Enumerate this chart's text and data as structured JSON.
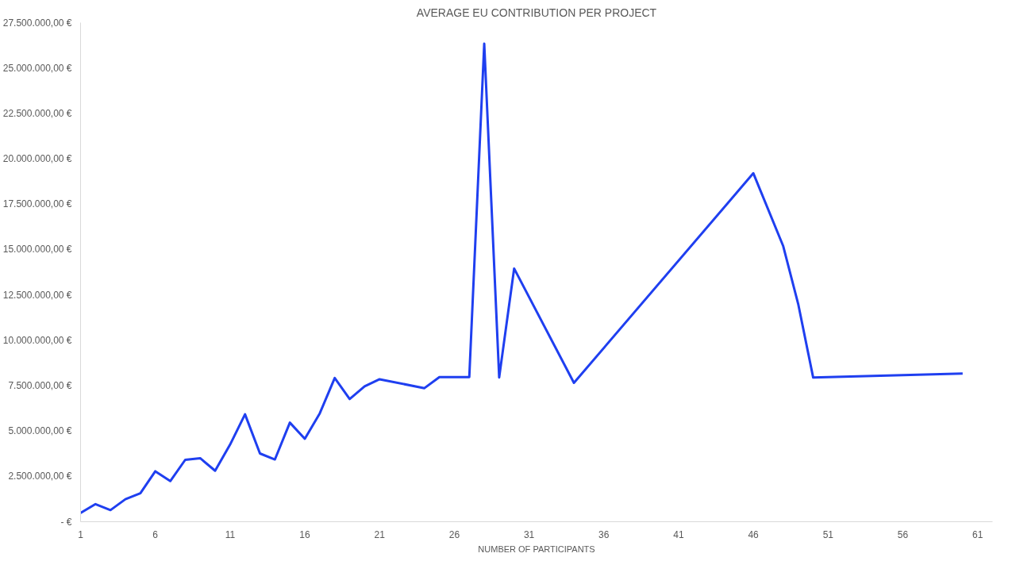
{
  "chart_data": {
    "type": "line",
    "title": "AVERAGE EU CONTRIBUTION PER PROJECT",
    "xlabel": "NUMBER OF PARTICIPANTS",
    "x": [
      1,
      2,
      3,
      4,
      5,
      6,
      7,
      8,
      9,
      10,
      11,
      12,
      13,
      14,
      15,
      16,
      17,
      18,
      19,
      20,
      21,
      24,
      25,
      27,
      28,
      29,
      30,
      34,
      46,
      48,
      49,
      50,
      60
    ],
    "series": [
      {
        "color": "#1f3ff0",
        "values": [
          480000,
          970000,
          640000,
          1240000,
          1570000,
          2780000,
          2240000,
          3410000,
          3500000,
          2810000,
          4250000,
          5920000,
          3760000,
          3430000,
          5460000,
          4570000,
          5970000,
          7920000,
          6760000,
          7460000,
          7850000,
          7360000,
          7970000,
          7970000,
          26340000,
          7950000,
          13950000,
          7650000,
          19200000,
          15180000,
          12000000,
          7950000,
          8170000
        ]
      }
    ],
    "xlim": [
      1,
      62
    ],
    "xticks": [
      1,
      6,
      11,
      16,
      21,
      26,
      31,
      36,
      41,
      46,
      51,
      56,
      61
    ],
    "ylim": [
      0,
      27500000
    ],
    "yticks": [
      {
        "value": 0,
        "label": "- €"
      },
      {
        "value": 2500000,
        "label": "2.500.000,00 €"
      },
      {
        "value": 5000000,
        "label": "5.000.000,00 €"
      },
      {
        "value": 7500000,
        "label": "7.500.000,00 €"
      },
      {
        "value": 10000000,
        "label": "10.000.000,00 €"
      },
      {
        "value": 12500000,
        "label": "12.500.000,00 €"
      },
      {
        "value": 15000000,
        "label": "15.000.000,00 €"
      },
      {
        "value": 17500000,
        "label": "17.500.000,00 €"
      },
      {
        "value": 20000000,
        "label": "20.000.000,00 €"
      },
      {
        "value": 22500000,
        "label": "22.500.000,00 €"
      },
      {
        "value": 25000000,
        "label": "25.000.000,00 €"
      },
      {
        "value": 27500000,
        "label": "27.500.000,00 €"
      }
    ],
    "grid": false,
    "marker": "none",
    "line_style": "solid"
  }
}
